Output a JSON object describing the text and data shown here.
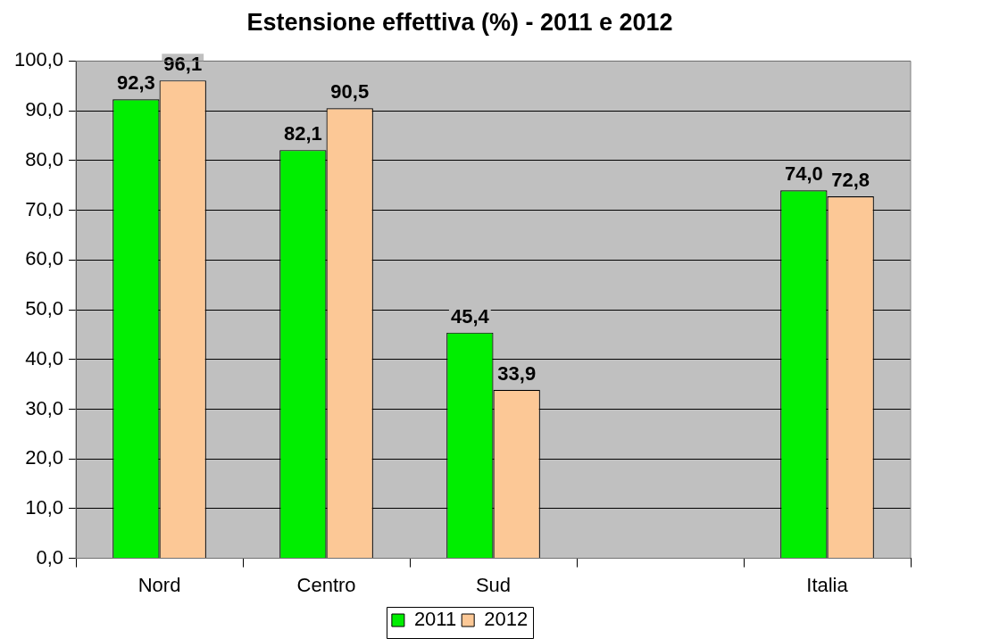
{
  "chart_data": {
    "type": "bar",
    "title": "Estensione effettiva (%) - 2011 e 2012",
    "categories": [
      "Nord",
      "Centro",
      "Sud",
      null,
      "Italia"
    ],
    "series": [
      {
        "name": "2011",
        "color": "#00ee00",
        "values": [
          92.3,
          82.1,
          45.4,
          null,
          74.0
        ],
        "value_labels": [
          "92,3",
          "82,1",
          "45,4",
          null,
          "74,0"
        ]
      },
      {
        "name": "2012",
        "color": "#fcc896",
        "values": [
          96.1,
          90.5,
          33.9,
          null,
          72.8
        ],
        "value_labels": [
          "96,1",
          "90,5",
          "33,9",
          null,
          "72,8"
        ]
      }
    ],
    "ylim": [
      0,
      100
    ],
    "yticks": [
      {
        "value": 0,
        "label": "0,0"
      },
      {
        "value": 10,
        "label": "10,0"
      },
      {
        "value": 20,
        "label": "20,0"
      },
      {
        "value": 30,
        "label": "30,0"
      },
      {
        "value": 40,
        "label": "40,0"
      },
      {
        "value": 50,
        "label": "50,0"
      },
      {
        "value": 60,
        "label": "60,0"
      },
      {
        "value": 70,
        "label": "70,0"
      },
      {
        "value": 80,
        "label": "80,0"
      },
      {
        "value": 90,
        "label": "90,0"
      },
      {
        "value": 100,
        "label": "100,0"
      }
    ],
    "grid": "y",
    "legend": "bottom"
  }
}
